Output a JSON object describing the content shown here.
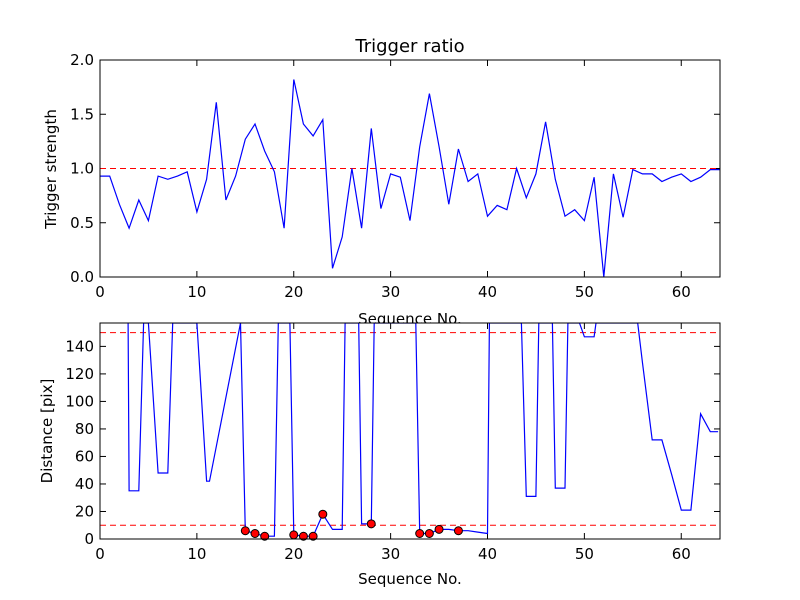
{
  "chart_data": [
    {
      "type": "line",
      "title": "Trigger ratio",
      "xlabel": "Sequence No.",
      "ylabel": "Trigger strength",
      "xlim": [
        0,
        64
      ],
      "ylim": [
        0,
        2.0
      ],
      "xticks": [
        "0",
        "10",
        "20",
        "30",
        "40",
        "50",
        "60"
      ],
      "yticks": [
        "0.0",
        "0.5",
        "1.0",
        "1.5",
        "2.0"
      ],
      "grid": false,
      "threshold": 1.0,
      "colors": {
        "line": "#0000ff",
        "threshold": "#ff0000"
      },
      "x": [
        0,
        1,
        2,
        3,
        4,
        5,
        6,
        7,
        8,
        9,
        10,
        11,
        12,
        13,
        14,
        15,
        16,
        17,
        18,
        19,
        20,
        21,
        22,
        23,
        24,
        25,
        26,
        27,
        28,
        29,
        30,
        31,
        32,
        33,
        34,
        35,
        36,
        37,
        38,
        39,
        40,
        41,
        42,
        43,
        44,
        45,
        46,
        47,
        48,
        49,
        50,
        51,
        52,
        53,
        54,
        55,
        56,
        57,
        58,
        59,
        60,
        61,
        62,
        63,
        64
      ],
      "y": [
        0.93,
        0.93,
        0.67,
        0.45,
        0.71,
        0.52,
        0.93,
        0.9,
        0.93,
        0.97,
        0.6,
        0.9,
        1.61,
        0.71,
        0.93,
        1.27,
        1.41,
        1.16,
        0.97,
        0.45,
        1.82,
        1.41,
        1.3,
        1.45,
        0.08,
        0.37,
        1.0,
        0.45,
        1.37,
        0.63,
        0.95,
        0.92,
        0.52,
        1.2,
        1.69,
        1.2,
        0.67,
        1.18,
        0.88,
        0.95,
        0.56,
        0.66,
        0.62,
        1.0,
        0.73,
        0.95,
        1.43,
        0.9,
        0.56,
        0.62,
        0.52,
        0.92,
        0.0,
        0.95,
        0.55,
        0.99,
        0.95,
        0.95,
        0.88,
        0.92,
        0.95,
        0.88,
        0.92,
        0.99,
        0.99
      ]
    },
    {
      "type": "line",
      "title": "",
      "xlabel": "Sequence No.",
      "ylabel": "Distance [pix]",
      "xlim": [
        0,
        64
      ],
      "ylim": [
        0,
        157
      ],
      "xticks": [
        "0",
        "10",
        "20",
        "30",
        "40",
        "50",
        "60"
      ],
      "yticks": [
        "0",
        "20",
        "40",
        "60",
        "80",
        "100",
        "120",
        "140"
      ],
      "grid": false,
      "thresholds": [
        150,
        10
      ],
      "colors": {
        "line": "#0000ff",
        "threshold": "#ff0000",
        "marker": "#ff0000"
      },
      "x": [
        2.9,
        3.0,
        4.0,
        4.5,
        5.0,
        6.0,
        7.0,
        7.5,
        10.0,
        11.0,
        11.3,
        14.5,
        15.0,
        16.0,
        17.0,
        18.0,
        18.4,
        19.6,
        20.0,
        21.0,
        22.0,
        23.0,
        24.0,
        25.0,
        25.3,
        26.7,
        27.0,
        28.0,
        28.3,
        32.6,
        33.0,
        34.0,
        35.0,
        36.0,
        37.0,
        38.0,
        39.0,
        40.0,
        40.2,
        43.5,
        44.0,
        45.0,
        45.3,
        46.7,
        47.0,
        48.0,
        48.3,
        49.5,
        50.0,
        51.0,
        51.2,
        52.0,
        55.5,
        56.0,
        57.0,
        58.0,
        59.0,
        60.0,
        61.0,
        62.0,
        63.0,
        63.8
      ],
      "y": [
        157,
        35,
        35,
        157,
        157,
        48,
        48,
        157,
        157,
        42,
        42,
        157,
        6,
        4,
        2,
        2,
        157,
        157,
        3,
        2,
        2,
        18,
        7,
        7,
        157,
        157,
        11,
        11,
        157,
        157,
        4,
        4,
        7,
        7,
        6,
        6,
        5,
        4,
        157,
        157,
        31,
        31,
        157,
        157,
        37,
        37,
        157,
        157,
        147,
        147,
        157,
        157,
        157,
        128,
        72,
        72,
        47,
        21,
        21,
        91,
        78,
        78
      ],
      "markers": {
        "x": [
          15,
          16,
          17,
          20,
          21,
          22,
          23,
          28,
          33,
          34,
          35,
          37
        ],
        "y": [
          6,
          4,
          2,
          3,
          2,
          2,
          18,
          11,
          4,
          4,
          7,
          6
        ]
      }
    }
  ]
}
